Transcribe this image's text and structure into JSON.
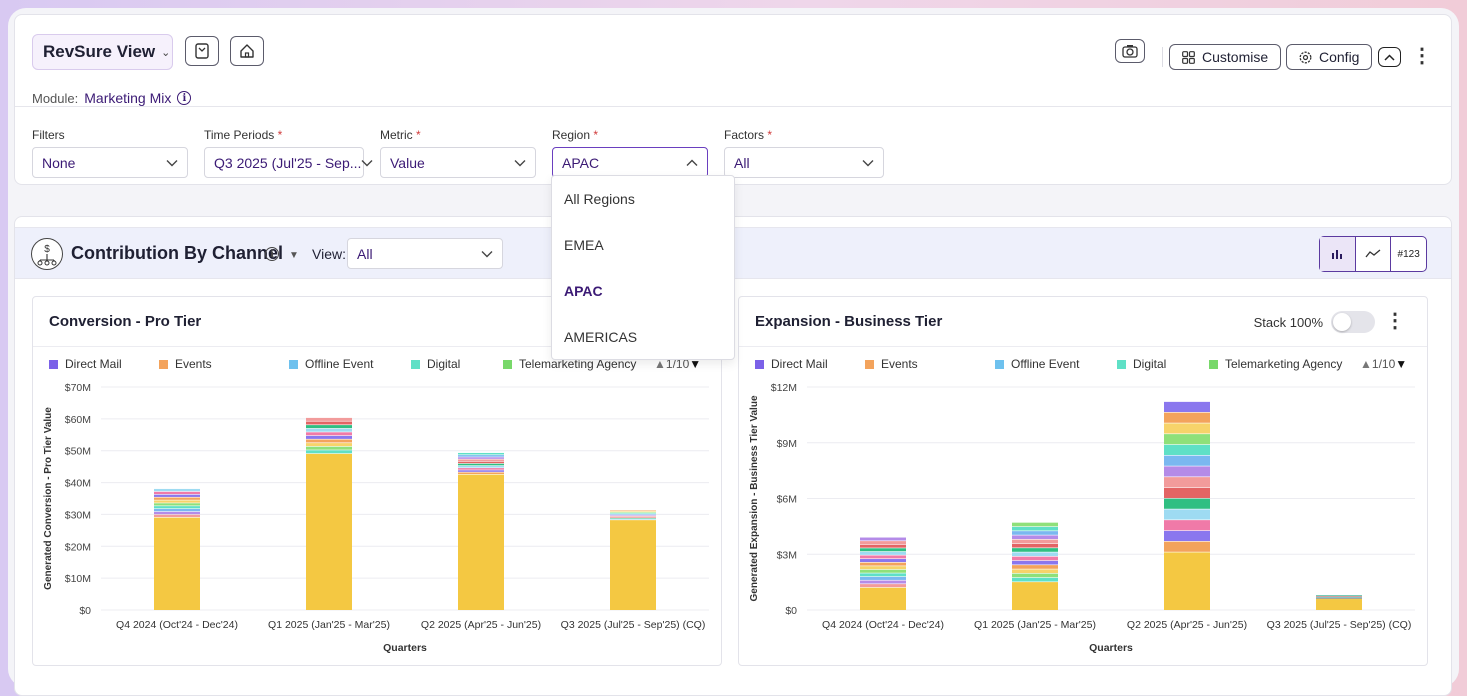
{
  "header": {
    "view_name": "RevSure View",
    "module_label": "Module:",
    "module_value": "Marketing Mix",
    "customise_label": "Customise",
    "config_label": "Config"
  },
  "filters": {
    "filters": {
      "label": "Filters",
      "value": "None"
    },
    "time_periods": {
      "label": "Time Periods",
      "value": "Q3 2025 (Jul'25 - Sep..."
    },
    "metric": {
      "label": "Metric",
      "value": "Value"
    },
    "region": {
      "label": "Region",
      "value": "APAC"
    },
    "factors": {
      "label": "Factors",
      "value": "All"
    },
    "required_mark": "*"
  },
  "region_dropdown": {
    "options": [
      "All Regions",
      "EMEA",
      "APAC",
      "AMERICAS"
    ],
    "selected": "APAC"
  },
  "section": {
    "title": "Contribution By Channel",
    "view_label": "View:",
    "view_value": "All",
    "toggle_label": "#123"
  },
  "legend_items": [
    {
      "name": "Direct Mail",
      "color": "#7b61e8"
    },
    {
      "name": "Events",
      "color": "#f3a35c"
    },
    {
      "name": "Offline Event",
      "color": "#6ec1ee"
    },
    {
      "name": "Digital",
      "color": "#5fe0c6"
    },
    {
      "name": "Telemarketing  Agency",
      "color": "#78d86a"
    }
  ],
  "pager": "1/10",
  "charts": [
    {
      "title": "Conversion - Pro Tier",
      "stack_label": "",
      "chart_data": {
        "type": "bar",
        "stacked": true,
        "title": "Conversion - Pro Tier",
        "xlabel": "Quarters",
        "ylabel": "Generated Conversion - Pro Tier Value",
        "ylim": [
          0,
          70
        ],
        "y_ticks": [
          "$0",
          "$10M",
          "$20M",
          "$30M",
          "$40M",
          "$50M",
          "$60M",
          "$70M"
        ],
        "categories": [
          "Q4 2024 (Oct'24 - Dec'24)",
          "Q1 2025 (Jan'25 - Mar'25)",
          "Q2 2025 (Apr'25 - Jun'25)",
          "Q3 2025 (Jul'25 - Sep'25) (CQ)"
        ],
        "totals": [
          38,
          60.3,
          49.3,
          31.3
        ],
        "base_values": [
          29,
          49,
          42.5,
          28.2
        ],
        "base_color": "#f4c842"
      }
    },
    {
      "title": "Expansion - Business Tier",
      "stack_label": "Stack 100%",
      "chart_data": {
        "type": "bar",
        "stacked": true,
        "title": "Expansion - Business Tier",
        "xlabel": "Quarters",
        "ylabel": "Generated Expansion - Business Tier Value",
        "ylim": [
          0,
          12
        ],
        "y_ticks": [
          "$0",
          "$3M",
          "$6M",
          "$9M",
          "$12M"
        ],
        "categories": [
          "Q4 2024 (Oct'24 - Dec'24)",
          "Q1 2025 (Jan'25 - Mar'25)",
          "Q2 2025 (Apr'25 - Jun'25)",
          "Q3 2025 (Jul'25 - Sep'25) (CQ)"
        ],
        "totals": [
          3.9,
          4.7,
          11.2,
          0.8
        ],
        "base_values": [
          1.2,
          1.5,
          3.1,
          0.6
        ],
        "base_color": "#f4c842"
      }
    }
  ],
  "stack_palette": [
    "#f29b9b",
    "#b48be8",
    "#7ab8f0",
    "#5fe0c6",
    "#8fe07a",
    "#f7d36a",
    "#f3a35c",
    "#8a77ee",
    "#f07aa8",
    "#9edbf2",
    "#2fbf82",
    "#e36464"
  ]
}
